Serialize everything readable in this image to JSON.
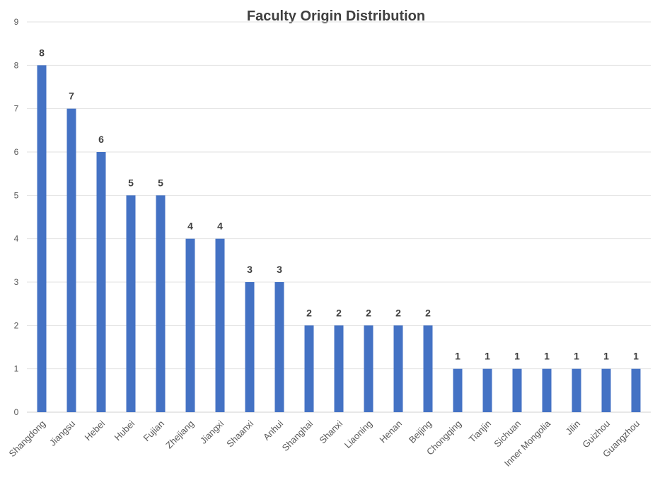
{
  "chart_data": {
    "type": "bar",
    "title": "Faculty Origin Distribution",
    "xlabel": "",
    "ylabel": "",
    "ylim": [
      0,
      9
    ],
    "yticks": [
      0,
      1,
      2,
      3,
      4,
      5,
      6,
      7,
      8,
      9
    ],
    "grid": true,
    "bar_color": "#4472C4",
    "categories": [
      "Shangdong",
      "Jiangsu",
      "Hebei",
      "Hubei",
      "Fujian",
      "Zhejiang",
      "Jiangxi",
      "Shaanxi",
      "Anhui",
      "Shanghai",
      "Shanxi",
      "Liaoning",
      "Henan",
      "Beijing",
      "Chongqing",
      "Tianjin",
      "Sichuan",
      "Inner Mongolia",
      "Jilin",
      "Guizhou",
      "Guangzhou"
    ],
    "values": [
      8,
      7,
      6,
      5,
      5,
      4,
      4,
      3,
      3,
      2,
      2,
      2,
      2,
      2,
      1,
      1,
      1,
      1,
      1,
      1,
      1
    ],
    "data_labels": true
  }
}
